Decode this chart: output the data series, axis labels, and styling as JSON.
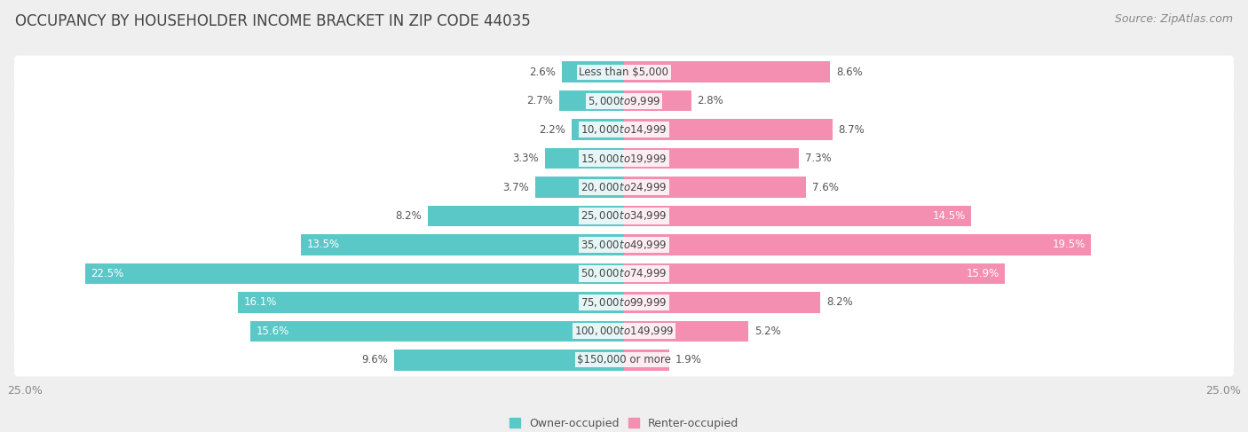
{
  "title": "OCCUPANCY BY HOUSEHOLDER INCOME BRACKET IN ZIP CODE 44035",
  "source": "Source: ZipAtlas.com",
  "categories": [
    "Less than $5,000",
    "$5,000 to $9,999",
    "$10,000 to $14,999",
    "$15,000 to $19,999",
    "$20,000 to $24,999",
    "$25,000 to $34,999",
    "$35,000 to $49,999",
    "$50,000 to $74,999",
    "$75,000 to $99,999",
    "$100,000 to $149,999",
    "$150,000 or more"
  ],
  "owner_values": [
    2.6,
    2.7,
    2.2,
    3.3,
    3.7,
    8.2,
    13.5,
    22.5,
    16.1,
    15.6,
    9.6
  ],
  "renter_values": [
    8.6,
    2.8,
    8.7,
    7.3,
    7.6,
    14.5,
    19.5,
    15.9,
    8.2,
    5.2,
    1.9
  ],
  "owner_color": "#5bc8c8",
  "renter_color": "#f48fb1",
  "background_color": "#efefef",
  "bar_bg_color": "#ffffff",
  "xlim": 25.0,
  "title_fontsize": 12,
  "label_fontsize": 8.5,
  "tick_fontsize": 9,
  "source_fontsize": 9,
  "bar_height": 0.72,
  "owner_inside_threshold": 10,
  "renter_inside_threshold": 14
}
